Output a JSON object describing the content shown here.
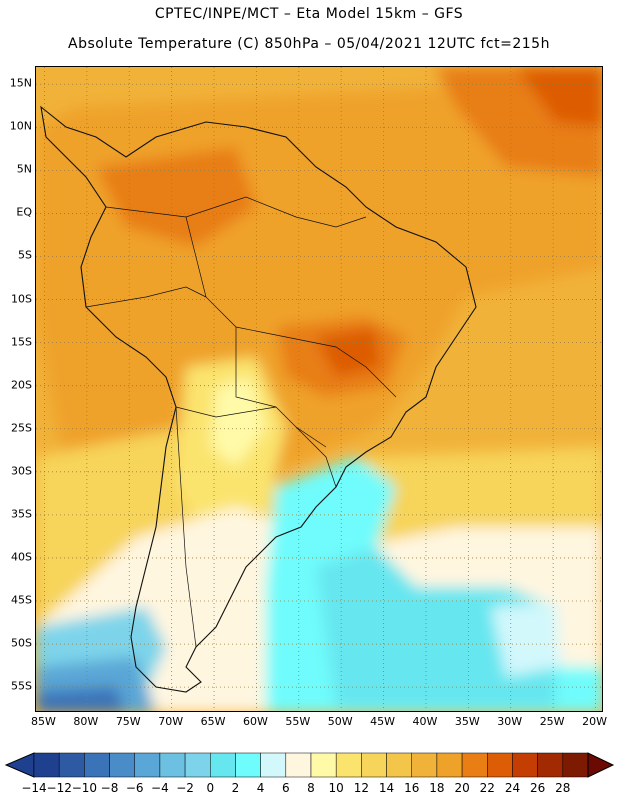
{
  "header": {
    "line1": "CPTEC/INPE/MCT –  Eta Model 15km – GFS",
    "line2": "Absolute Temperature (C) 850hPa – 05/04/2021 12UTC fct=215h"
  },
  "map": {
    "lat_labels": [
      "15N",
      "10N",
      "5N",
      "EQ",
      "5S",
      "10S",
      "15S",
      "20S",
      "25S",
      "30S",
      "35S",
      "40S",
      "45S",
      "50S",
      "55S"
    ],
    "lat_values": [
      15,
      10,
      5,
      0,
      -5,
      -10,
      -15,
      -20,
      -25,
      -30,
      -35,
      -40,
      -45,
      -50,
      -55
    ],
    "lon_labels": [
      "85W",
      "80W",
      "75W",
      "70W",
      "65W",
      "60W",
      "55W",
      "50W",
      "45W",
      "40W",
      "35W",
      "30W",
      "25W",
      "20W"
    ],
    "lon_values": [
      -85,
      -80,
      -75,
      -70,
      -65,
      -60,
      -55,
      -50,
      -45,
      -40,
      -35,
      -30,
      -25,
      -20
    ],
    "lat_range": [
      -58,
      17
    ],
    "lon_range": [
      -86,
      -19
    ],
    "grid": "dotted",
    "region": "South America"
  },
  "colorbar": {
    "labels": [
      "-14",
      "-12",
      "-10",
      "-8",
      "-6",
      "-4",
      "-2",
      "0",
      "2",
      "4",
      "6",
      "8",
      "10",
      "12",
      "14",
      "16",
      "18",
      "20",
      "22",
      "24",
      "26",
      "28"
    ],
    "colors": [
      "#1f3f8f",
      "#2d5aa3",
      "#3b73b8",
      "#4a8cc8",
      "#5aa6d6",
      "#6cc0e2",
      "#7dd4ea",
      "#66e6ef",
      "#6ffcfc",
      "#d2f8fc",
      "#fff6e0",
      "#fffaa8",
      "#fbe46e",
      "#f7d45a",
      "#f3c64a",
      "#f1b23a",
      "#efa22a",
      "#e87e14",
      "#dd5c06",
      "#c43e04",
      "#a22a02",
      "#7c1a02"
    ],
    "unit": "C"
  }
}
